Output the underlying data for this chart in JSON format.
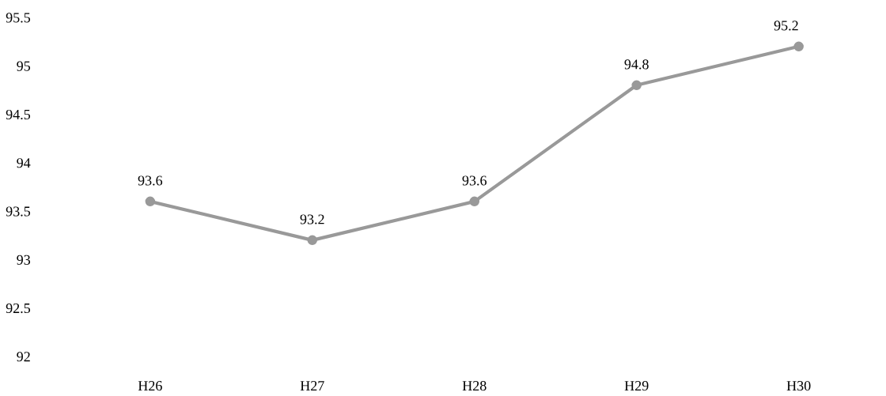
{
  "chart_data": {
    "type": "line",
    "categories": [
      "H26",
      "H27",
      "H28",
      "H29",
      "H30"
    ],
    "values": [
      93.6,
      93.2,
      93.6,
      94.8,
      95.2
    ],
    "color": "#999999",
    "marker": "circle",
    "line_style": "solid",
    "ylim": [
      92,
      95.5
    ],
    "yticks": [
      92,
      92.5,
      93,
      93.5,
      94,
      94.5,
      95,
      95.5
    ],
    "data_labels": true,
    "grid": false,
    "legend": false
  }
}
